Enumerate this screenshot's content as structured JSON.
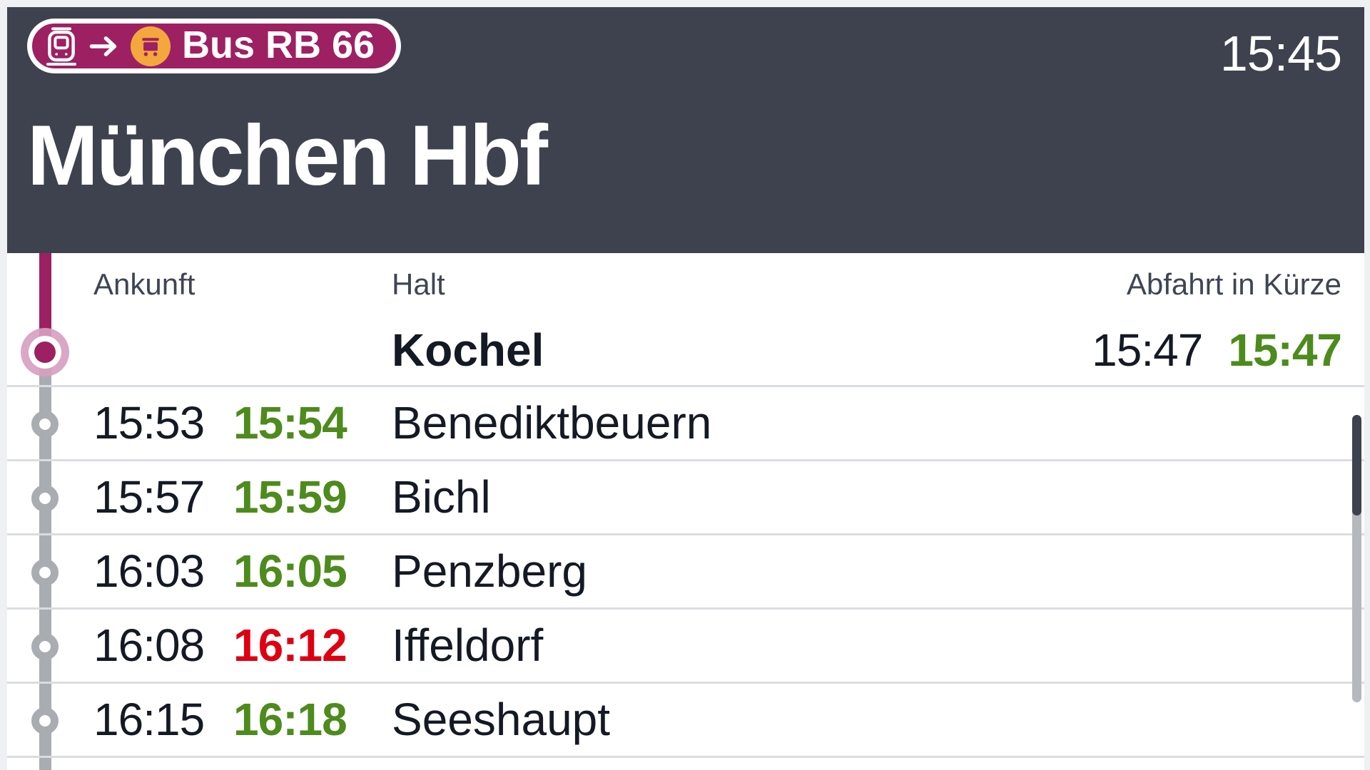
{
  "header": {
    "badge": {
      "label": "Bus RB 66",
      "from_icon": "train-icon",
      "to_icon": "bus-icon"
    },
    "clock": "15:45",
    "station": "München Hbf"
  },
  "columns": {
    "arrival": "Ankunft",
    "stop": "Halt",
    "departure": "Abfahrt in Kürze"
  },
  "next_stop": {
    "name": "Kochel",
    "scheduled": "15:47",
    "realtime": "15:47",
    "status": "ontime"
  },
  "stops": [
    {
      "scheduled": "15:53",
      "realtime": "15:54",
      "status": "ontime",
      "name": "Benediktbeuern"
    },
    {
      "scheduled": "15:57",
      "realtime": "15:59",
      "status": "ontime",
      "name": "Bichl"
    },
    {
      "scheduled": "16:03",
      "realtime": "16:05",
      "status": "ontime",
      "name": "Penzberg"
    },
    {
      "scheduled": "16:08",
      "realtime": "16:12",
      "status": "delayed",
      "name": "Iffeldorf"
    },
    {
      "scheduled": "16:15",
      "realtime": "16:18",
      "status": "ontime",
      "name": "Seeshaupt"
    }
  ],
  "colors": {
    "accent_magenta": "#9d2063",
    "orange": "#f3a73d",
    "green": "#4d8b1d",
    "red": "#de0012",
    "header_bg": "#3d424e",
    "text_dark": "#141a24",
    "text_muted": "#3e4553",
    "separator": "#d9dde2",
    "timeline_gray": "#a9acb1",
    "timeline_pink": "#d79fc1",
    "scroll_track": "#b5b8bd",
    "frame_bg": "#eef0f4"
  }
}
